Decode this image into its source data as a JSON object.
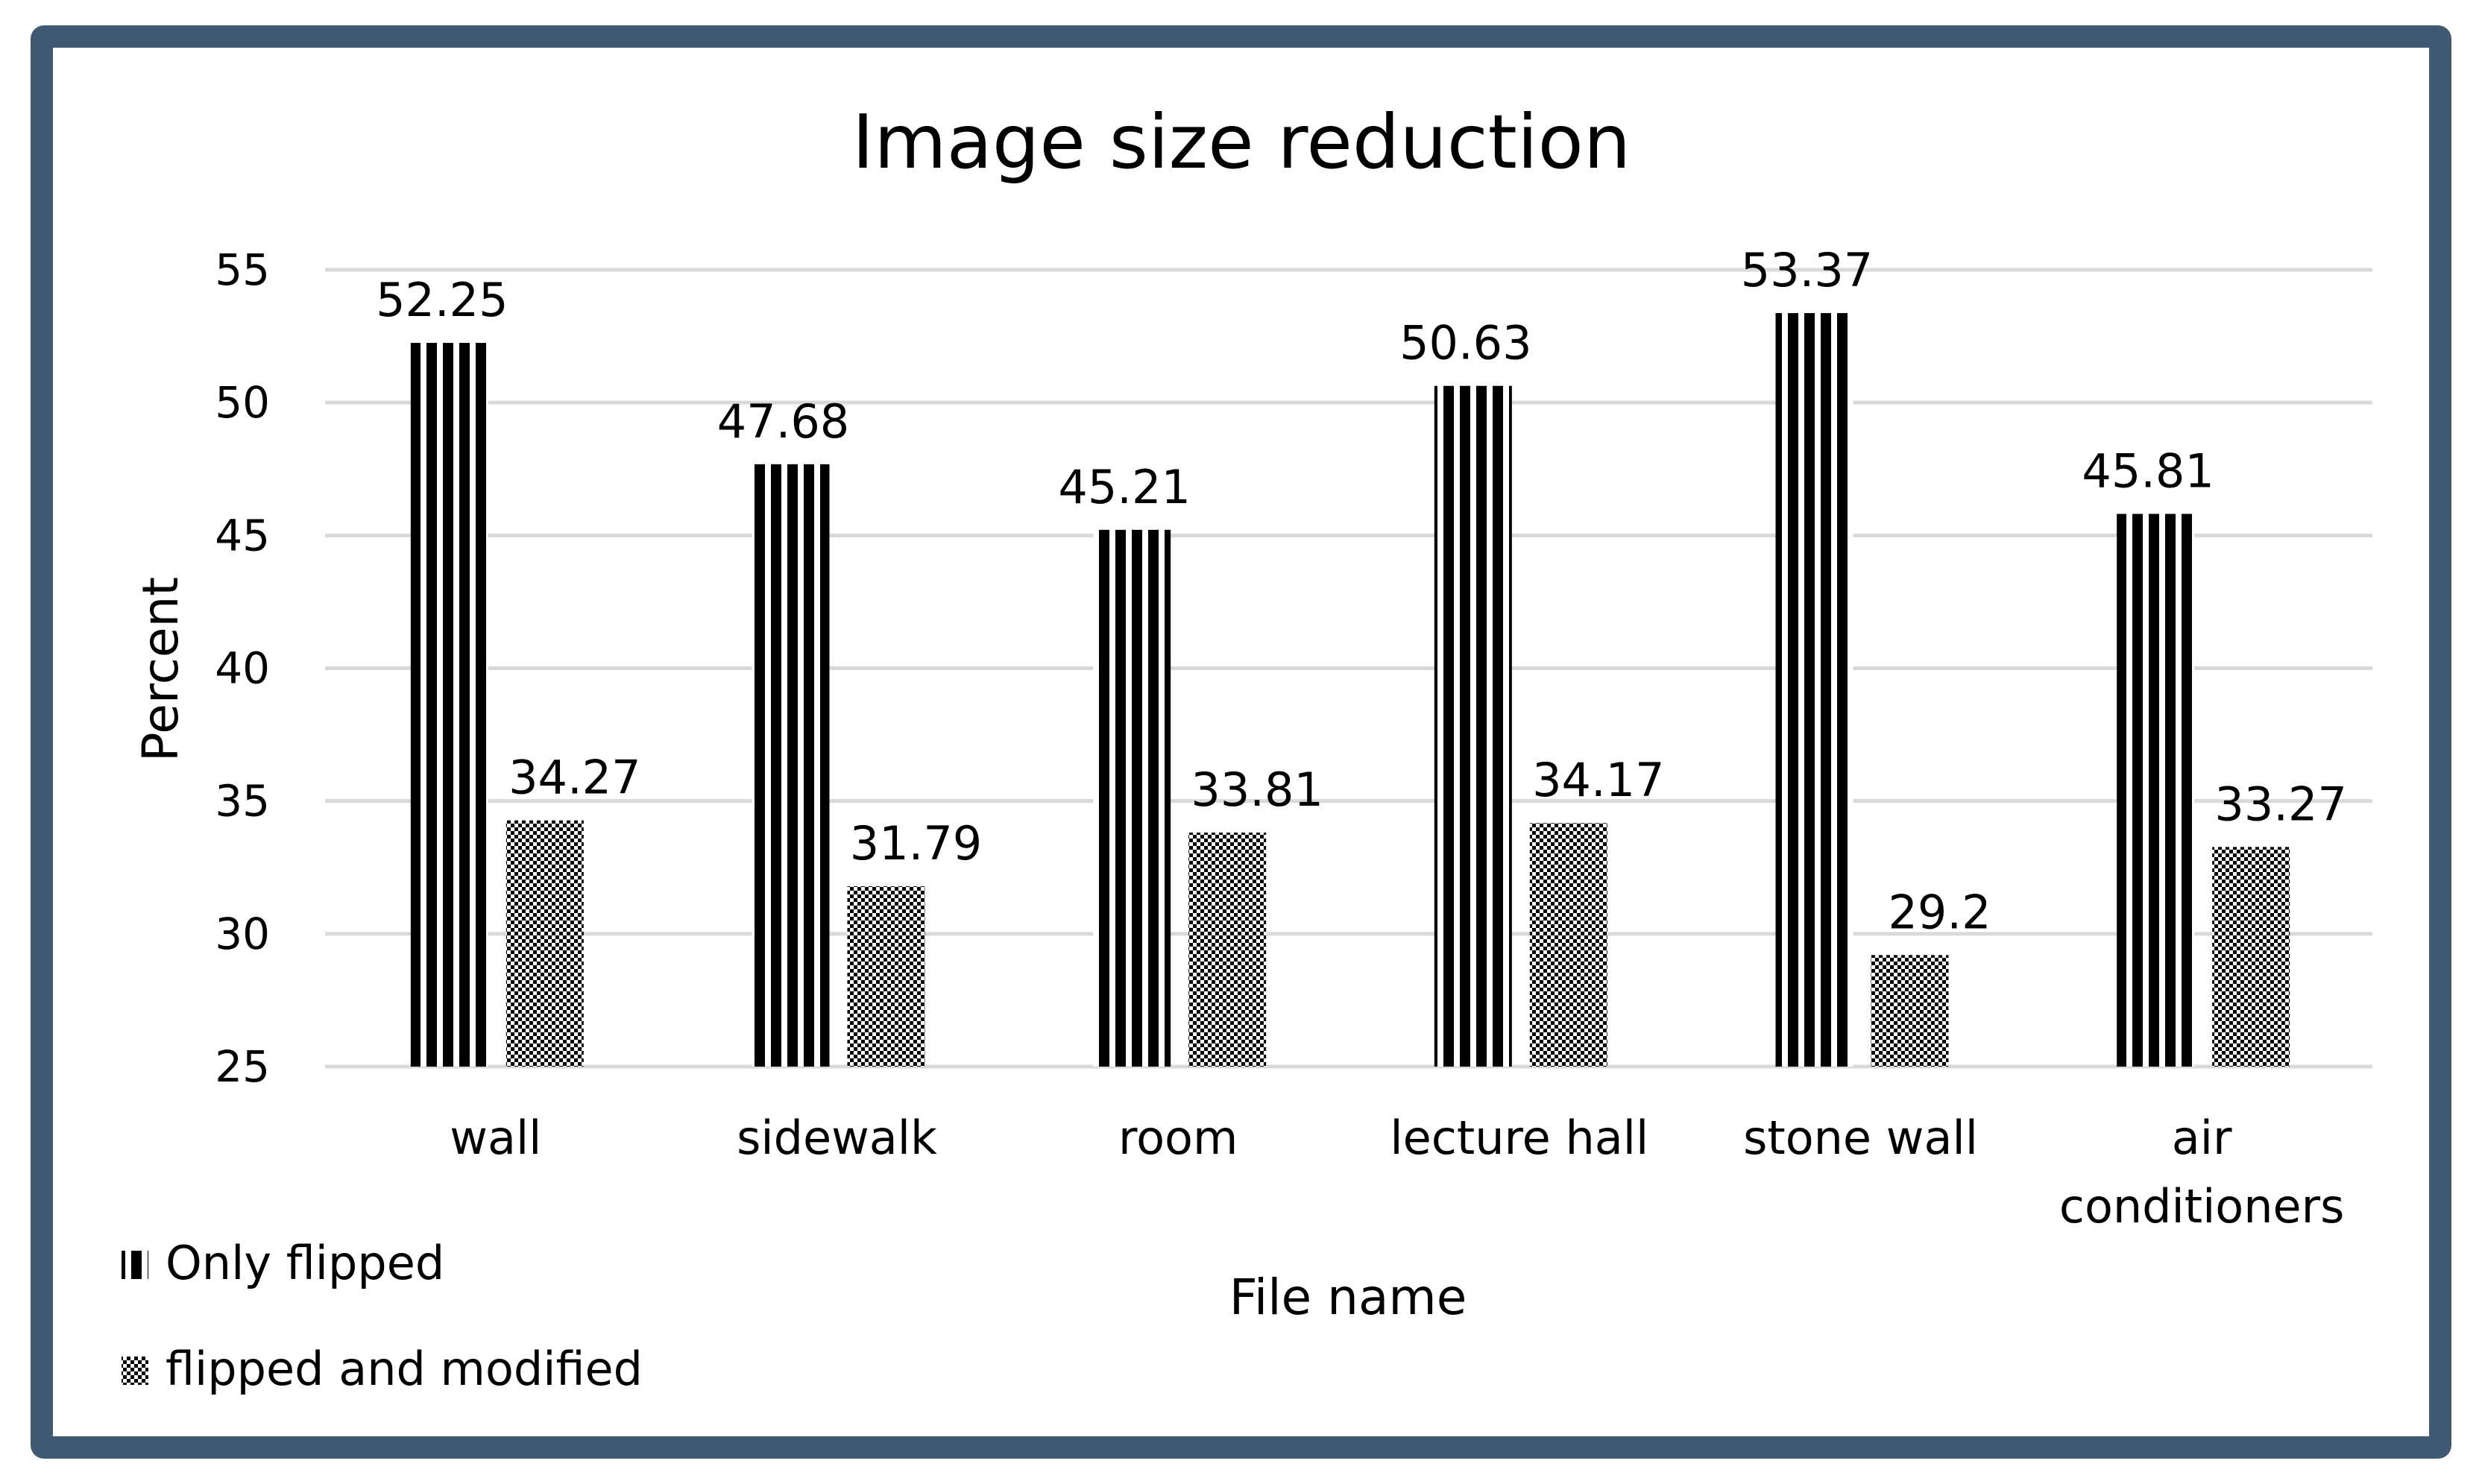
{
  "chart_data": {
    "type": "bar",
    "title": "Image size reduction",
    "xlabel": "File name",
    "ylabel": "Percent",
    "ylim": [
      25,
      55
    ],
    "yticks": [
      25,
      30,
      35,
      40,
      45,
      50,
      55
    ],
    "grid": true,
    "legend_position": "bottom-left",
    "categories": [
      [
        "wall"
      ],
      [
        "sidewalk"
      ],
      [
        "room"
      ],
      [
        "lecture hall"
      ],
      [
        "stone wall"
      ],
      [
        "air",
        "conditioners"
      ]
    ],
    "series": [
      {
        "name": "Only flipped",
        "pattern": "vertical-stripes",
        "values": [
          52.25,
          47.68,
          45.21,
          50.63,
          53.37,
          45.81
        ]
      },
      {
        "name": "flipped and modified",
        "pattern": "checkerboard",
        "values": [
          34.27,
          31.79,
          33.81,
          34.17,
          29.2,
          33.27
        ]
      }
    ],
    "colors": {
      "frame": "#415a74",
      "grid": "#d9d9d9",
      "bars": "#000000"
    }
  }
}
